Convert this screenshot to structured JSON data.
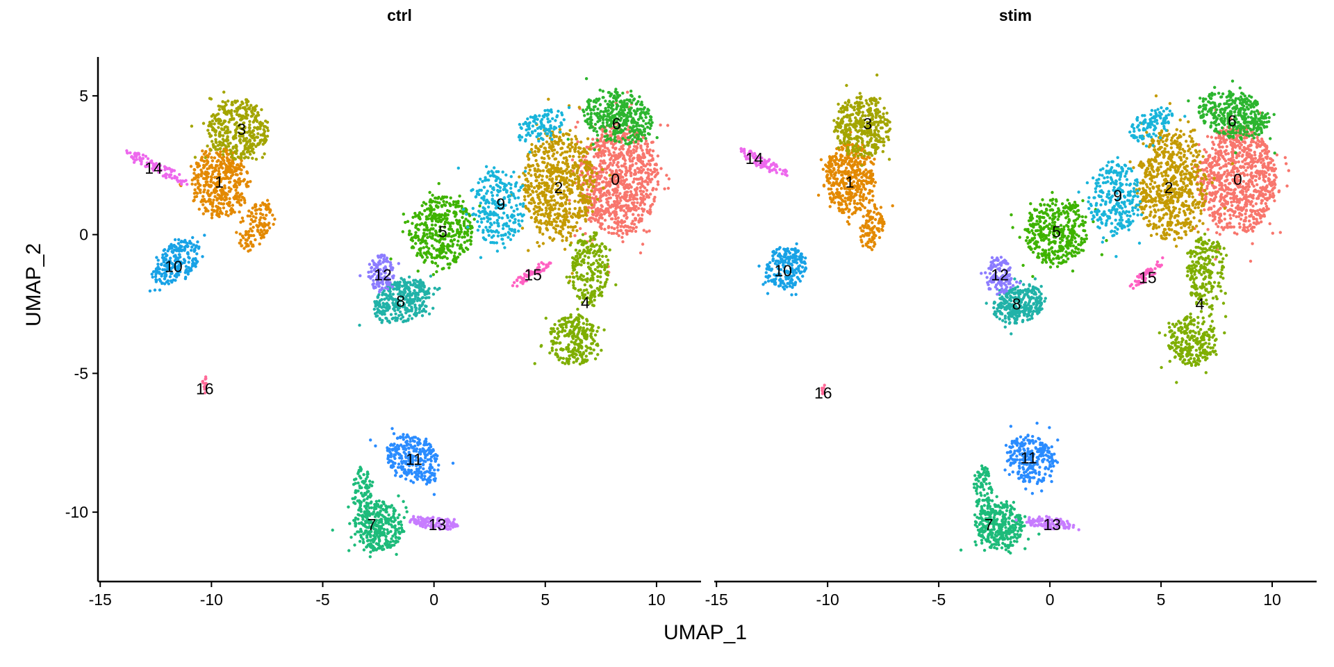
{
  "chart_data": {
    "type": "scatter",
    "xlabel": "UMAP_1",
    "ylabel": "UMAP_2",
    "xlim": [
      -15.1,
      12.0
    ],
    "ylim": [
      -12.5,
      6.4
    ],
    "xticks": [
      -15,
      -10,
      -5,
      0,
      5,
      10
    ],
    "yticks": [
      5,
      0,
      -5,
      -10
    ],
    "grid": false,
    "legend": "none",
    "colors": [
      "#F8766D",
      "#E38900",
      "#C49A00",
      "#A3A500",
      "#7FAE00",
      "#3EB300",
      "#2CB52F",
      "#1DBB7A",
      "#21B2A8",
      "#19B4DA",
      "#18A2E6",
      "#2A8CFF",
      "#8C7CFF",
      "#C77CFF",
      "#ED68ED",
      "#FF61C3",
      "#FF6A98"
    ],
    "panels": [
      {
        "title": "ctrl",
        "clusters": [
          {
            "id": "0",
            "label": [
              8.15,
              2.0
            ],
            "blobs": [
              [
                8.3,
                2.0,
                2.1,
                2.4,
                0,
                900
              ]
            ]
          },
          {
            "id": "1",
            "label": [
              -9.65,
              1.9
            ],
            "blobs": [
              [
                -9.6,
                1.9,
                1.5,
                1.5,
                0,
                420
              ],
              [
                -8.0,
                0.3,
                0.7,
                1.2,
                -35,
                120
              ]
            ]
          },
          {
            "id": "2",
            "label": [
              5.6,
              1.7
            ],
            "blobs": [
              [
                5.6,
                1.8,
                1.9,
                2.4,
                0,
                650
              ]
            ]
          },
          {
            "id": "3",
            "label": [
              -8.65,
              3.8
            ],
            "blobs": [
              [
                -8.8,
                3.8,
                1.6,
                1.3,
                0,
                380
              ]
            ]
          },
          {
            "id": "4",
            "label": [
              6.8,
              -2.45
            ],
            "blobs": [
              [
                7.0,
                -1.2,
                1.0,
                1.6,
                0,
                220
              ],
              [
                6.3,
                -3.8,
                1.3,
                1.1,
                0,
                260
              ]
            ]
          },
          {
            "id": "5",
            "label": [
              0.4,
              0.1
            ],
            "blobs": [
              [
                0.3,
                0.1,
                1.7,
                1.5,
                10,
                420
              ]
            ]
          },
          {
            "id": "6",
            "label": [
              8.2,
              4.0
            ],
            "blobs": [
              [
                8.3,
                4.2,
                1.9,
                1.1,
                -10,
                380
              ]
            ]
          },
          {
            "id": "7",
            "label": [
              -2.8,
              -10.45
            ],
            "blobs": [
              [
                -2.5,
                -10.5,
                1.3,
                1.1,
                0,
                330
              ],
              [
                -3.2,
                -9.2,
                0.5,
                1.0,
                0,
                80
              ]
            ]
          },
          {
            "id": "8",
            "label": [
              -1.5,
              -2.4
            ],
            "blobs": [
              [
                -1.4,
                -2.4,
                1.6,
                0.9,
                15,
                330
              ]
            ]
          },
          {
            "id": "9",
            "label": [
              3.0,
              1.1
            ],
            "blobs": [
              [
                2.9,
                1.0,
                1.4,
                1.6,
                0,
                260
              ],
              [
                4.8,
                3.9,
                1.3,
                0.6,
                20,
                110
              ]
            ]
          },
          {
            "id": "10",
            "label": [
              -11.7,
              -1.15
            ],
            "blobs": [
              [
                -11.6,
                -1.0,
                1.4,
                0.8,
                25,
                230
              ]
            ]
          },
          {
            "id": "11",
            "label": [
              -0.9,
              -8.1
            ],
            "blobs": [
              [
                -0.9,
                -8.1,
                1.5,
                1.0,
                -20,
                280
              ]
            ]
          },
          {
            "id": "12",
            "label": [
              -2.3,
              -1.45
            ],
            "blobs": [
              [
                -2.4,
                -1.4,
                0.7,
                0.8,
                0,
                130
              ]
            ]
          },
          {
            "id": "13",
            "label": [
              0.15,
              -10.45
            ],
            "blobs": [
              [
                0.0,
                -10.4,
                1.3,
                0.25,
                -5,
                110
              ]
            ]
          },
          {
            "id": "14",
            "label": [
              -12.6,
              2.4
            ],
            "blobs": [
              [
                -12.4,
                2.4,
                1.9,
                0.25,
                -22,
                100
              ]
            ]
          },
          {
            "id": "15",
            "label": [
              4.45,
              -1.45
            ],
            "blobs": [
              [
                4.4,
                -1.4,
                1.2,
                0.22,
                28,
                55
              ]
            ]
          },
          {
            "id": "16",
            "label": [
              -10.3,
              -5.55
            ],
            "blobs": [
              [
                -10.3,
                -5.4,
                0.12,
                0.4,
                0,
                14
              ]
            ]
          }
        ]
      },
      {
        "title": "stim",
        "clusters": [
          {
            "id": "0",
            "label": [
              8.45,
              2.0
            ],
            "blobs": [
              [
                8.4,
                2.0,
                2.1,
                2.3,
                0,
                900
              ]
            ]
          },
          {
            "id": "1",
            "label": [
              -9.0,
              1.9
            ],
            "blobs": [
              [
                -9.0,
                2.0,
                1.4,
                1.5,
                0,
                420
              ],
              [
                -8.0,
                0.3,
                0.6,
                1.0,
                -20,
                100
              ]
            ]
          },
          {
            "id": "2",
            "label": [
              5.35,
              1.7
            ],
            "blobs": [
              [
                5.5,
                1.8,
                1.9,
                2.4,
                0,
                650
              ]
            ]
          },
          {
            "id": "3",
            "label": [
              -8.2,
              4.0
            ],
            "blobs": [
              [
                -8.4,
                3.9,
                1.5,
                1.3,
                0,
                380
              ]
            ]
          },
          {
            "id": "4",
            "label": [
              6.75,
              -2.5
            ],
            "blobs": [
              [
                7.0,
                -1.3,
                1.0,
                1.6,
                0,
                220
              ],
              [
                6.4,
                -3.8,
                1.3,
                1.1,
                0,
                260
              ]
            ]
          },
          {
            "id": "5",
            "label": [
              0.3,
              0.1
            ],
            "blobs": [
              [
                0.3,
                0.1,
                1.7,
                1.4,
                10,
                400
              ]
            ]
          },
          {
            "id": "6",
            "label": [
              8.2,
              4.1
            ],
            "blobs": [
              [
                8.3,
                4.3,
                1.9,
                1.0,
                -10,
                380
              ]
            ]
          },
          {
            "id": "7",
            "label": [
              -2.75,
              -10.45
            ],
            "blobs": [
              [
                -2.3,
                -10.5,
                1.3,
                1.0,
                0,
                330
              ],
              [
                -3.0,
                -9.2,
                0.5,
                1.0,
                0,
                80
              ]
            ]
          },
          {
            "id": "8",
            "label": [
              -1.5,
              -2.5
            ],
            "blobs": [
              [
                -1.4,
                -2.5,
                1.4,
                0.8,
                10,
                310
              ]
            ]
          },
          {
            "id": "9",
            "label": [
              3.05,
              1.4
            ],
            "blobs": [
              [
                2.9,
                1.3,
                1.4,
                1.6,
                0,
                260
              ],
              [
                4.6,
                4.0,
                1.3,
                0.6,
                20,
                110
              ]
            ]
          },
          {
            "id": "10",
            "label": [
              -12.0,
              -1.3
            ],
            "blobs": [
              [
                -11.9,
                -1.2,
                1.1,
                0.9,
                10,
                220
              ]
            ]
          },
          {
            "id": "11",
            "label": [
              -0.95,
              -8.05
            ],
            "blobs": [
              [
                -0.9,
                -8.1,
                1.3,
                1.0,
                -25,
                270
              ]
            ]
          },
          {
            "id": "12",
            "label": [
              -2.25,
              -1.45
            ],
            "blobs": [
              [
                -2.3,
                -1.5,
                0.7,
                0.8,
                0,
                130
              ]
            ]
          },
          {
            "id": "13",
            "label": [
              0.1,
              -10.45
            ],
            "blobs": [
              [
                0.0,
                -10.4,
                1.3,
                0.25,
                -5,
                110
              ]
            ]
          },
          {
            "id": "14",
            "label": [
              -13.3,
              2.75
            ],
            "blobs": [
              [
                -12.9,
                2.6,
                1.5,
                0.25,
                -22,
                80
              ]
            ]
          },
          {
            "id": "15",
            "label": [
              4.4,
              -1.55
            ],
            "blobs": [
              [
                4.3,
                -1.5,
                1.0,
                0.22,
                30,
                50
              ]
            ]
          },
          {
            "id": "16",
            "label": [
              -10.2,
              -5.7
            ],
            "blobs": [
              [
                -10.2,
                -5.5,
                0.1,
                0.3,
                0,
                8
              ]
            ]
          }
        ]
      }
    ]
  }
}
